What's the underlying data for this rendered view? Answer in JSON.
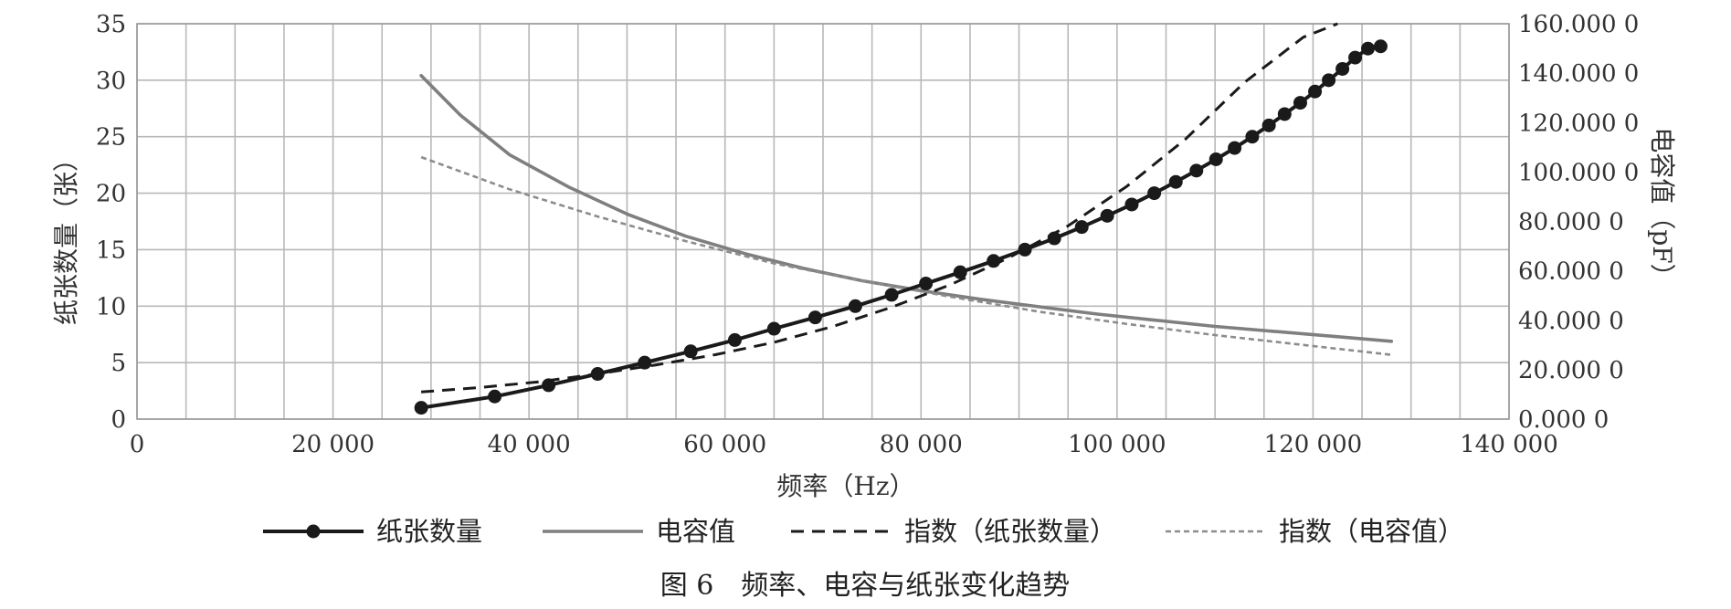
{
  "chart_data": {
    "type": "line",
    "caption": "图 6　频率、电容与纸张变化趋势",
    "xlabel": "频率（Hz）",
    "ylabel_left": "纸张数量（张）",
    "ylabel_right": "电容值（pF）",
    "xlim": [
      0,
      140000
    ],
    "ylim_left": [
      0,
      35
    ],
    "ylim_right": [
      0,
      160
    ],
    "x_ticks": [
      0,
      20000,
      40000,
      60000,
      80000,
      100000,
      120000,
      140000
    ],
    "x_tick_labels": [
      "0",
      "20 000",
      "40 000",
      "60 000",
      "80 000",
      "100 000",
      "120 000",
      "140 000"
    ],
    "y_left_ticks": [
      0,
      5,
      10,
      15,
      20,
      25,
      30,
      35
    ],
    "y_left_tick_labels": [
      "0",
      "5",
      "10",
      "15",
      "20",
      "25",
      "30",
      "35"
    ],
    "y_right_ticks": [
      0,
      20,
      40,
      60,
      80,
      100,
      120,
      140,
      160
    ],
    "y_right_tick_labels": [
      "0.000 0",
      "20.000 0",
      "40.000 0",
      "60.000 0",
      "80.000 0",
      "100.000 0",
      "120.000 0",
      "140.000 0",
      "160.000 0"
    ],
    "grid": true,
    "legend_position": "bottom",
    "series": [
      {
        "name": "纸张数量",
        "axis": "left",
        "style": "solid-marker",
        "color": "#1a1a1a",
        "x": [
          29000,
          36500,
          42000,
          47000,
          51800,
          56500,
          61000,
          65000,
          69200,
          73300,
          77000,
          80500,
          84000,
          87400,
          90600,
          93600,
          96400,
          99000,
          101500,
          103800,
          106000,
          108100,
          110100,
          112000,
          113800,
          115500,
          117100,
          118700,
          120200,
          121600,
          123000,
          124300,
          125600,
          126900
        ],
        "y": [
          1,
          2,
          3,
          4,
          5,
          6,
          7,
          8,
          9,
          10,
          11,
          12,
          13,
          14,
          15,
          16,
          17,
          18,
          19,
          20,
          21,
          22,
          23,
          24,
          25,
          26,
          27,
          28,
          29,
          30,
          31,
          32,
          32.8,
          33
        ]
      },
      {
        "name": "电容值",
        "axis": "right",
        "style": "solid",
        "color": "#7f7f7f",
        "x": [
          29000,
          33000,
          38000,
          44000,
          50000,
          56000,
          62000,
          68000,
          74000,
          80000,
          86000,
          92000,
          98000,
          104000,
          110000,
          116000,
          122000,
          128000
        ],
        "y": [
          139,
          123,
          107,
          94,
          83,
          74,
          67,
          61,
          56,
          52,
          48.5,
          45.5,
          42.5,
          40,
          37.5,
          35.5,
          33.5,
          31.5
        ]
      },
      {
        "name": "指数（纸张数量）",
        "axis": "left",
        "style": "dashed",
        "color": "#1a1a1a",
        "x": [
          29000,
          35000,
          41000,
          47000,
          53000,
          59000,
          65000,
          71000,
          77000,
          83000,
          89000,
          95000,
          101000,
          107000,
          113000,
          119000,
          122500
        ],
        "y": [
          2.4,
          2.8,
          3.3,
          4.0,
          4.8,
          5.7,
          6.8,
          8.2,
          9.9,
          11.9,
          14.3,
          17.1,
          20.6,
          24.8,
          29.8,
          33.8,
          35
        ]
      },
      {
        "name": "指数（电容值）",
        "axis": "right",
        "style": "dotted",
        "color": "#8c8c8c",
        "x": [
          29000,
          38000,
          47000,
          56000,
          65000,
          74000,
          83000,
          92000,
          101000,
          110000,
          119000,
          128000
        ],
        "y": [
          106,
          93,
          82,
          72,
          63,
          56,
          49.5,
          43.5,
          38.5,
          34,
          30,
          26
        ]
      }
    ]
  }
}
